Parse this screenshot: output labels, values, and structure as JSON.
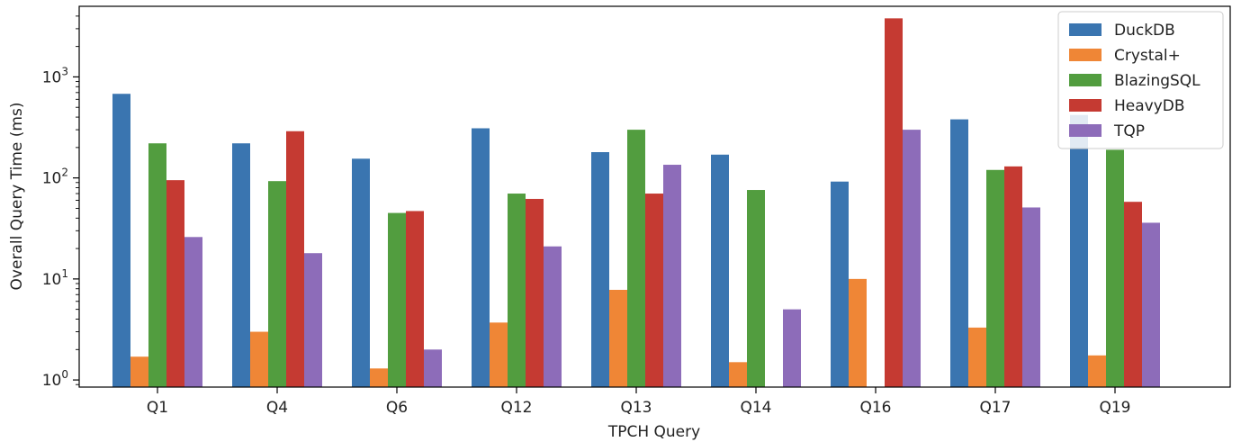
{
  "chart_data": {
    "type": "bar",
    "xlabel": "TPCH Query",
    "ylabel": "Overall Query Time (ms)",
    "yscale": "log",
    "ylim": [
      0.85,
      5000
    ],
    "yticks": [
      {
        "value": 1,
        "base": "10",
        "exp": "0"
      },
      {
        "value": 10,
        "base": "10",
        "exp": "1"
      },
      {
        "value": 100,
        "base": "10",
        "exp": "2"
      },
      {
        "value": 1000,
        "base": "10",
        "exp": "3"
      }
    ],
    "categories": [
      "Q1",
      "Q4",
      "Q6",
      "Q12",
      "Q13",
      "Q14",
      "Q16",
      "Q17",
      "Q19"
    ],
    "legend_position": "top-right",
    "series": [
      {
        "name": "DuckDB",
        "color": "#3a75b0",
        "values": [
          680,
          220,
          155,
          310,
          180,
          170,
          92,
          380,
          420
        ]
      },
      {
        "name": "Crystal+",
        "color": "#ef8636",
        "values": [
          1.7,
          3.0,
          1.3,
          3.7,
          7.8,
          1.5,
          10,
          3.3,
          1.75
        ]
      },
      {
        "name": "BlazingSQL",
        "color": "#529d3f",
        "values": [
          220,
          93,
          45,
          70,
          300,
          76,
          null,
          120,
          190
        ]
      },
      {
        "name": "HeavyDB",
        "color": "#c53a32",
        "values": [
          95,
          290,
          47,
          62,
          70,
          null,
          3800,
          130,
          58
        ]
      },
      {
        "name": "TQP",
        "color": "#8d6cb9",
        "values": [
          26,
          18,
          2.0,
          21,
          135,
          5.0,
          300,
          51,
          36
        ]
      }
    ]
  }
}
